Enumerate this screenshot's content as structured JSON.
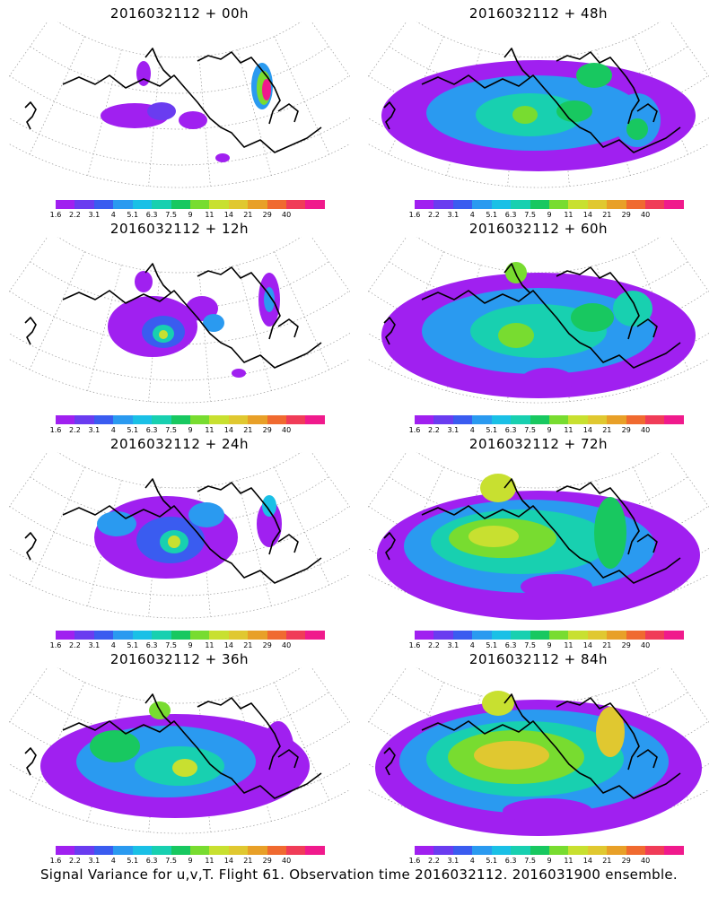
{
  "footer_caption": "Signal Variance for u,v,T. Flight 61. Observation time 2016032112. 2016031900 ensemble.",
  "colorbar": {
    "labels": [
      "1.6",
      "2.2",
      "3.1",
      "4",
      "5.1",
      "6.3",
      "7.5",
      "9",
      "11",
      "14",
      "21",
      "29",
      "40"
    ],
    "colors": [
      "#a020f0",
      "#6a3cf0",
      "#3a5cf0",
      "#2a9af0",
      "#1ac0e6",
      "#18d0b0",
      "#18c860",
      "#78dc30",
      "#c8e030",
      "#e0c830",
      "#e8a028",
      "#f06a30",
      "#f03c58",
      "#f01a8c"
    ]
  },
  "panels": [
    {
      "title": "2016032112 + 00h",
      "intensity": 0
    },
    {
      "title": "2016032112 + 48h",
      "intensity": 4
    },
    {
      "title": "2016032112 + 12h",
      "intensity": 1
    },
    {
      "title": "2016032112 + 60h",
      "intensity": 5
    },
    {
      "title": "2016032112 + 24h",
      "intensity": 2
    },
    {
      "title": "2016032112 + 72h",
      "intensity": 6
    },
    {
      "title": "2016032112 + 36h",
      "intensity": 3
    },
    {
      "title": "2016032112 + 84h",
      "intensity": 7
    }
  ]
}
